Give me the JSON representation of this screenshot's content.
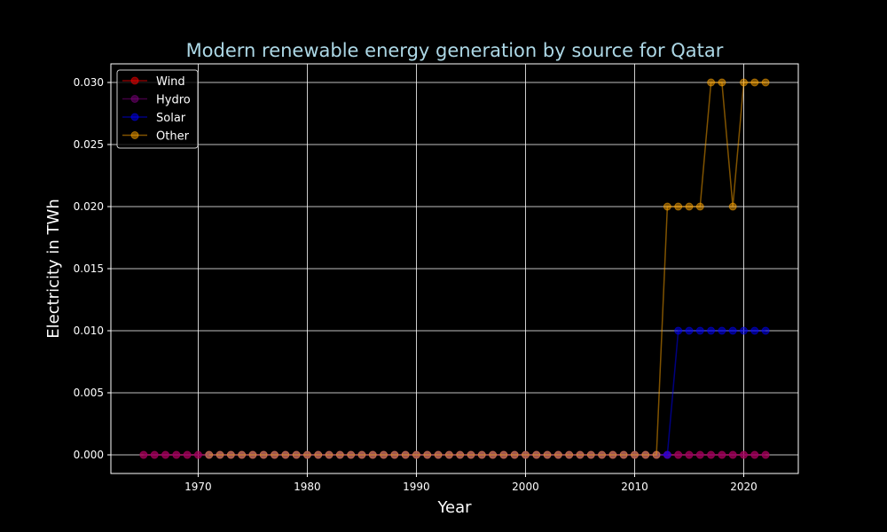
{
  "chart_data": {
    "type": "line",
    "title": "Modern renewable energy generation by source for Qatar",
    "xlabel": "Year",
    "ylabel": "Electricity in TWh",
    "xlim": [
      1962,
      2025
    ],
    "ylim": [
      -0.0015,
      0.0315
    ],
    "x_ticks": [
      1970,
      1980,
      1990,
      2000,
      2010,
      2020
    ],
    "y_ticks": [
      0.0,
      0.005,
      0.01,
      0.015,
      0.02,
      0.025,
      0.03
    ],
    "y_tick_labels": [
      "0.000",
      "0.005",
      "0.010",
      "0.015",
      "0.020",
      "0.025",
      "0.030"
    ],
    "grid": true,
    "legend_position": "upper-left",
    "series": [
      {
        "name": "Wind",
        "color": "#ff0000",
        "x_start": 1965,
        "x_end": 2022,
        "values": "all zero"
      },
      {
        "name": "Hydro",
        "color": "#800080",
        "x_start": 1965,
        "x_end": 2022,
        "values": "all zero"
      },
      {
        "name": "Solar",
        "color": "#0000ff",
        "x_start": 1971,
        "x_end": 2022,
        "values": "zero 1971-2013; 0.01 for 2014-2022"
      },
      {
        "name": "Other",
        "color": "#ffa500",
        "x_start": 1971,
        "x_end": 2022,
        "values": "zero 1971-2012; 2013:0.02, 2014:0.02, 2015:0.02, 2016:0.02, 2017:0.03, 2018:0.03, 2019:0.02, 2020:0.03, 2021:0.03, 2022:0.03"
      }
    ]
  }
}
